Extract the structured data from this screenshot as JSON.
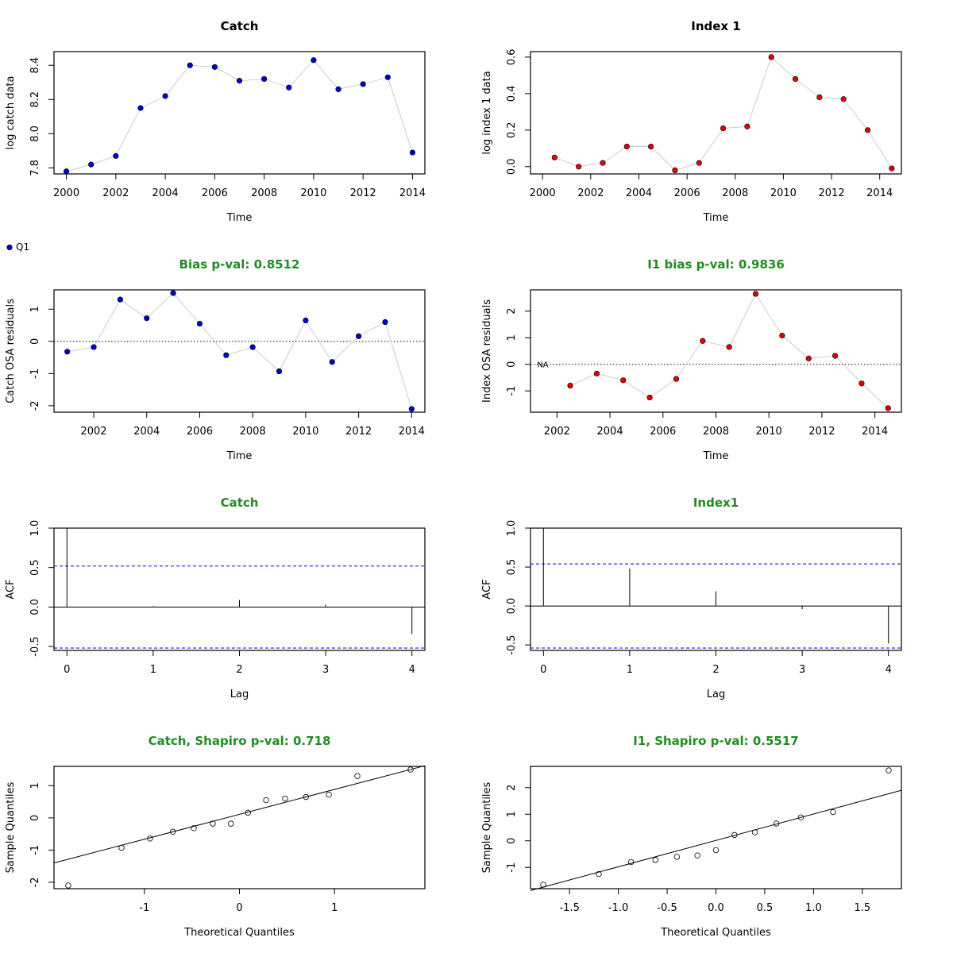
{
  "chart_data": [
    {
      "id": "catch_ts",
      "type": "line",
      "title": "Catch",
      "title_color": "#000000",
      "xlabel": "Time",
      "ylabel": "log catch data",
      "xlim": [
        1999.5,
        2014.5
      ],
      "ylim": [
        7.765,
        8.48
      ],
      "xticks": [
        2000,
        2002,
        2004,
        2006,
        2008,
        2010,
        2012,
        2014
      ],
      "yticks": [
        7.8,
        8.0,
        8.2,
        8.4
      ],
      "ytick_labels": [
        "7.8",
        "8.0",
        "8.2",
        "8.4"
      ],
      "point_fill": "#0000cd",
      "series": [
        {
          "x": [
            2000,
            2001,
            2002,
            2003,
            2004,
            2005,
            2006,
            2007,
            2008,
            2009,
            2010,
            2011,
            2012,
            2013,
            2014
          ],
          "y": [
            7.78,
            7.82,
            7.87,
            8.15,
            8.22,
            8.4,
            8.39,
            8.31,
            8.32,
            8.27,
            8.43,
            8.26,
            8.29,
            8.33,
            7.89
          ]
        }
      ]
    },
    {
      "id": "index1_ts",
      "type": "line",
      "title": "Index 1",
      "title_color": "#000000",
      "xlabel": "Time",
      "ylabel": "log index 1 data",
      "xlim": [
        1999.5,
        2014.9
      ],
      "ylim": [
        -0.04,
        0.63
      ],
      "xticks": [
        2000,
        2002,
        2004,
        2006,
        2008,
        2010,
        2012,
        2014
      ],
      "yticks": [
        0.0,
        0.2,
        0.4,
        0.6
      ],
      "ytick_labels": [
        "0.0",
        "0.2",
        "0.4",
        "0.6"
      ],
      "point_fill": "#e00000",
      "legend": {
        "label": "Q1",
        "color": "#0000cd"
      },
      "series": [
        {
          "x": [
            2000.5,
            2001.5,
            2002.5,
            2003.5,
            2004.5,
            2005.5,
            2006.5,
            2007.5,
            2008.5,
            2009.5,
            2010.5,
            2011.5,
            2012.5,
            2013.5,
            2014.5
          ],
          "y": [
            0.05,
            0.0,
            0.02,
            0.11,
            0.11,
            -0.02,
            0.02,
            0.21,
            0.22,
            0.6,
            0.48,
            0.38,
            0.37,
            0.2,
            -0.01
          ]
        }
      ]
    },
    {
      "id": "catch_resid",
      "type": "line",
      "title": "Bias p-val: 0.8512",
      "title_color": "#228b22",
      "xlabel": "Time",
      "ylabel": "Catch OSA residuals",
      "xlim": [
        2000.5,
        2014.5
      ],
      "ylim": [
        -2.2,
        1.6
      ],
      "xticks": [
        2002,
        2004,
        2006,
        2008,
        2010,
        2012,
        2014
      ],
      "yticks": [
        -2,
        -1,
        0,
        1
      ],
      "ytick_labels": [
        "-2",
        "-1",
        "0",
        "1"
      ],
      "hline": 0,
      "point_fill": "#0000cd",
      "series": [
        {
          "x": [
            2001,
            2002,
            2003,
            2004,
            2005,
            2006,
            2007,
            2008,
            2009,
            2010,
            2011,
            2012,
            2013,
            2014
          ],
          "y": [
            -0.32,
            -0.18,
            1.3,
            0.72,
            1.5,
            0.55,
            -0.43,
            -0.18,
            -0.93,
            0.65,
            -0.64,
            0.16,
            0.6,
            -2.1
          ]
        }
      ]
    },
    {
      "id": "index1_resid",
      "type": "line",
      "title": "I1 bias p-val: 0.9836",
      "title_color": "#228b22",
      "xlabel": "Time",
      "ylabel": "Index OSA residuals",
      "xlim": [
        2001.0,
        2015.0
      ],
      "ylim": [
        -1.8,
        2.8
      ],
      "xticks": [
        2002,
        2004,
        2006,
        2008,
        2010,
        2012,
        2014
      ],
      "yticks": [
        -1,
        0,
        1,
        2
      ],
      "ytick_labels": [
        "-1",
        "0",
        "1",
        "2"
      ],
      "hline": 0,
      "annotation": {
        "text": "NA",
        "x": 2001.25,
        "y": 0
      },
      "point_fill": "#e00000",
      "series": [
        {
          "x": [
            2002.5,
            2003.5,
            2004.5,
            2005.5,
            2006.5,
            2007.5,
            2008.5,
            2009.5,
            2010.5,
            2011.5,
            2012.5,
            2013.5,
            2014.5
          ],
          "y": [
            -0.8,
            -0.35,
            -0.6,
            -1.25,
            -0.55,
            0.88,
            0.65,
            2.65,
            1.08,
            0.22,
            0.32,
            -0.72,
            -1.65
          ]
        }
      ]
    },
    {
      "id": "catch_acf",
      "type": "bar",
      "title": "Catch",
      "title_color": "#228b22",
      "xlabel": "Lag",
      "ylabel": "ACF",
      "xlim": [
        -0.15,
        4.15
      ],
      "ylim": [
        -0.55,
        1.0
      ],
      "xticks": [
        0,
        1,
        2,
        3,
        4
      ],
      "yticks": [
        -0.5,
        0.0,
        0.5,
        1.0
      ],
      "ytick_labels": [
        "-0.5",
        "0.0",
        "0.5",
        "1.0"
      ],
      "conf_limit": 0.52,
      "lags": [
        0,
        1,
        2,
        3,
        4
      ],
      "values": [
        1.0,
        0.01,
        0.09,
        0.03,
        -0.34
      ]
    },
    {
      "id": "index1_acf",
      "type": "bar",
      "title": "Index1",
      "title_color": "#228b22",
      "xlabel": "Lag",
      "ylabel": "ACF",
      "xlim": [
        -0.15,
        4.15
      ],
      "ylim": [
        -0.57,
        1.0
      ],
      "xticks": [
        0,
        1,
        2,
        3,
        4
      ],
      "yticks": [
        -0.5,
        0.0,
        0.5,
        1.0
      ],
      "ytick_labels": [
        "-0.5",
        "0.0",
        "0.5",
        "1.0"
      ],
      "conf_limit": 0.54,
      "lags": [
        0,
        1,
        2,
        3,
        4
      ],
      "values": [
        1.0,
        0.48,
        0.19,
        -0.04,
        -0.48
      ]
    },
    {
      "id": "catch_qq",
      "type": "scatter",
      "title": "Catch, Shapiro p-val: 0.718",
      "title_color": "#228b22",
      "xlabel": "Theoretical Quantiles",
      "ylabel": "Sample Quantiles",
      "xlim": [
        -1.95,
        1.95
      ],
      "ylim": [
        -2.2,
        1.6
      ],
      "xticks": [
        -1,
        0,
        1
      ],
      "xtick_labels": [
        "-1",
        "0",
        "1"
      ],
      "yticks": [
        -2,
        -1,
        0,
        1
      ],
      "ytick_labels": [
        "-2",
        "-1",
        "0",
        "1"
      ],
      "qq_line": {
        "x": [
          -1.95,
          1.95
        ],
        "y": [
          -1.4,
          1.62
        ]
      },
      "points": {
        "x": [
          -1.8,
          -1.24,
          -0.94,
          -0.7,
          -0.48,
          -0.28,
          -0.09,
          0.09,
          0.28,
          0.48,
          0.7,
          0.94,
          1.24,
          1.8
        ],
        "y": [
          -2.1,
          -0.93,
          -0.64,
          -0.43,
          -0.32,
          -0.18,
          -0.18,
          0.16,
          0.55,
          0.6,
          0.65,
          0.72,
          1.3,
          1.5
        ]
      }
    },
    {
      "id": "index1_qq",
      "type": "scatter",
      "title": "I1, Shapiro p-val: 0.5517",
      "title_color": "#228b22",
      "xlabel": "Theoretical Quantiles",
      "ylabel": "Sample Quantiles",
      "xlim": [
        -1.9,
        1.9
      ],
      "ylim": [
        -1.8,
        2.8
      ],
      "xticks": [
        -1.5,
        -1.0,
        -0.5,
        0.0,
        0.5,
        1.0,
        1.5
      ],
      "xtick_labels": [
        "-1.5",
        "-1.0",
        "-0.5",
        "0.0",
        "0.5",
        "1.0",
        "1.5"
      ],
      "yticks": [
        -1,
        0,
        1,
        2
      ],
      "ytick_labels": [
        "-1",
        "0",
        "1",
        "2"
      ],
      "qq_line": {
        "x": [
          -1.9,
          1.9
        ],
        "y": [
          -1.87,
          1.9
        ]
      },
      "points": {
        "x": [
          -1.77,
          -1.2,
          -0.87,
          -0.62,
          -0.4,
          -0.19,
          0.0,
          0.19,
          0.4,
          0.62,
          0.87,
          1.2,
          1.77
        ],
        "y": [
          -1.65,
          -1.25,
          -0.8,
          -0.72,
          -0.6,
          -0.55,
          -0.35,
          0.22,
          0.32,
          0.65,
          0.88,
          1.08,
          2.65
        ]
      }
    }
  ]
}
